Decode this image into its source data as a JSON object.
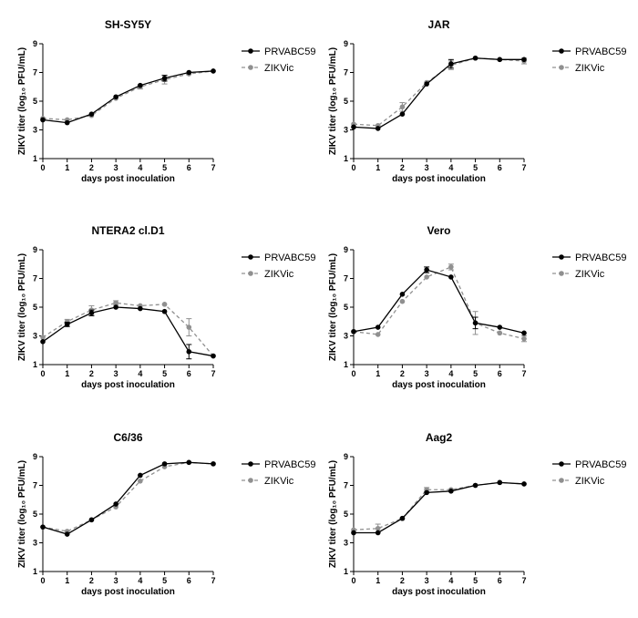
{
  "chart_data": [
    {
      "type": "line",
      "title": "SH-SY5Y",
      "xlabel": "days post inoculation",
      "ylabel": "ZIKV titer (log₁₀ PFU/mL)",
      "x": [
        0,
        1,
        2,
        3,
        4,
        5,
        6,
        7
      ],
      "xlim": [
        0,
        7
      ],
      "ylim": [
        1,
        9
      ],
      "xticks": [
        0,
        1,
        2,
        3,
        4,
        5,
        6,
        7
      ],
      "yticks": [
        1,
        3,
        5,
        7,
        9
      ],
      "series": [
        {
          "name": "PRVABC59",
          "color": "#000000",
          "dashed": false,
          "values": [
            3.7,
            3.5,
            4.1,
            5.3,
            6.1,
            6.6,
            7.0,
            7.1
          ],
          "errors": [
            0.1,
            0.1,
            0.1,
            0.1,
            0.1,
            0.2,
            0.1,
            0.05
          ]
        },
        {
          "name": "ZIKVic",
          "color": "#909090",
          "dashed": true,
          "values": [
            3.8,
            3.7,
            4.0,
            5.2,
            6.0,
            6.5,
            6.9,
            7.1
          ],
          "errors": [
            0.1,
            0.1,
            0.1,
            0.1,
            0.15,
            0.3,
            0.1,
            0.05
          ]
        }
      ]
    },
    {
      "type": "line",
      "title": "JAR",
      "xlabel": "days post inoculation",
      "ylabel": "ZIKV titer (log₁₀ PFU/mL)",
      "x": [
        0,
        1,
        2,
        3,
        4,
        5,
        6,
        7
      ],
      "xlim": [
        0,
        7
      ],
      "ylim": [
        1,
        9
      ],
      "xticks": [
        0,
        1,
        2,
        3,
        4,
        5,
        6,
        7
      ],
      "yticks": [
        1,
        3,
        5,
        7,
        9
      ],
      "series": [
        {
          "name": "PRVABC59",
          "color": "#000000",
          "dashed": false,
          "values": [
            3.2,
            3.1,
            4.1,
            6.2,
            7.6,
            8.0,
            7.9,
            7.9
          ],
          "errors": [
            0.1,
            0.1,
            0.1,
            0.1,
            0.3,
            0.05,
            0.05,
            0.1
          ]
        },
        {
          "name": "ZIKVic",
          "color": "#909090",
          "dashed": true,
          "values": [
            3.4,
            3.3,
            4.6,
            6.3,
            7.5,
            8.0,
            7.9,
            7.8
          ],
          "errors": [
            0.1,
            0.1,
            0.3,
            0.1,
            0.3,
            0.05,
            0.05,
            0.2
          ]
        }
      ]
    },
    {
      "type": "line",
      "title": "NTERA2 cl.D1",
      "xlabel": "days post inoculation",
      "ylabel": "ZIKV titer (log₁₀ PFU/mL)",
      "x": [
        0,
        1,
        2,
        3,
        4,
        5,
        6,
        7
      ],
      "xlim": [
        0,
        7
      ],
      "ylim": [
        1,
        9
      ],
      "xticks": [
        0,
        1,
        2,
        3,
        4,
        5,
        6,
        7
      ],
      "yticks": [
        1,
        3,
        5,
        7,
        9
      ],
      "series": [
        {
          "name": "PRVABC59",
          "color": "#000000",
          "dashed": false,
          "values": [
            2.6,
            3.8,
            4.6,
            5.0,
            4.9,
            4.7,
            1.9,
            1.6
          ],
          "errors": [
            0.1,
            0.15,
            0.2,
            0.1,
            0.1,
            0.1,
            0.5,
            0.1
          ]
        },
        {
          "name": "ZIKVic",
          "color": "#909090",
          "dashed": true,
          "values": [
            2.9,
            4.0,
            4.8,
            5.3,
            5.1,
            5.2,
            3.6,
            1.6
          ],
          "errors": [
            0.1,
            0.15,
            0.3,
            0.15,
            0.1,
            0.1,
            0.6,
            0.1
          ]
        }
      ]
    },
    {
      "type": "line",
      "title": "Vero",
      "xlabel": "days post inoculation",
      "ylabel": "ZIKV titer (log₁₀ PFU/mL)",
      "x": [
        0,
        1,
        2,
        3,
        4,
        5,
        6,
        7
      ],
      "xlim": [
        0,
        7
      ],
      "ylim": [
        1,
        9
      ],
      "xticks": [
        0,
        1,
        2,
        3,
        4,
        5,
        6,
        7
      ],
      "yticks": [
        1,
        3,
        5,
        7,
        9
      ],
      "series": [
        {
          "name": "PRVABC59",
          "color": "#000000",
          "dashed": false,
          "values": [
            3.3,
            3.6,
            5.9,
            7.6,
            7.1,
            3.9,
            3.6,
            3.2
          ],
          "errors": [
            0.1,
            0.1,
            0.1,
            0.2,
            0.1,
            0.4,
            0.1,
            0.1
          ]
        },
        {
          "name": "ZIKVic",
          "color": "#909090",
          "dashed": true,
          "values": [
            3.3,
            3.1,
            5.4,
            7.1,
            7.8,
            3.9,
            3.2,
            2.8
          ],
          "errors": [
            0.1,
            0.1,
            0.1,
            0.1,
            0.2,
            0.8,
            0.1,
            0.2
          ]
        }
      ]
    },
    {
      "type": "line",
      "title": "C6/36",
      "xlabel": "days post inoculation",
      "ylabel": "ZIKV titer (log₁₀ PFU/mL)",
      "x": [
        0,
        1,
        2,
        3,
        4,
        5,
        6,
        7
      ],
      "xlim": [
        0,
        7
      ],
      "ylim": [
        1,
        9
      ],
      "xticks": [
        0,
        1,
        2,
        3,
        4,
        5,
        6,
        7
      ],
      "yticks": [
        1,
        3,
        5,
        7,
        9
      ],
      "series": [
        {
          "name": "PRVABC59",
          "color": "#000000",
          "dashed": false,
          "values": [
            4.1,
            3.6,
            4.6,
            5.7,
            7.7,
            8.5,
            8.6,
            8.5
          ],
          "errors": [
            0.1,
            0.1,
            0.1,
            0.1,
            0.1,
            0.1,
            0.1,
            0.1
          ]
        },
        {
          "name": "ZIKVic",
          "color": "#909090",
          "dashed": true,
          "values": [
            4.1,
            3.8,
            4.6,
            5.5,
            7.3,
            8.3,
            8.6,
            8.5
          ],
          "errors": [
            0.1,
            0.1,
            0.1,
            0.1,
            0.1,
            0.1,
            0.1,
            0.1
          ]
        }
      ]
    },
    {
      "type": "line",
      "title": "Aag2",
      "xlabel": "days post inoculation",
      "ylabel": "ZIKV titer (log₁₀ PFU/mL)",
      "x": [
        0,
        1,
        2,
        3,
        4,
        5,
        6,
        7
      ],
      "xlim": [
        0,
        7
      ],
      "ylim": [
        1,
        9
      ],
      "xticks": [
        0,
        1,
        2,
        3,
        4,
        5,
        6,
        7
      ],
      "yticks": [
        1,
        3,
        5,
        7,
        9
      ],
      "series": [
        {
          "name": "PRVABC59",
          "color": "#000000",
          "dashed": false,
          "values": [
            3.7,
            3.7,
            4.7,
            6.5,
            6.6,
            7.0,
            7.2,
            7.1
          ],
          "errors": [
            0.1,
            0.1,
            0.1,
            0.1,
            0.1,
            0.1,
            0.1,
            0.1
          ]
        },
        {
          "name": "ZIKVic",
          "color": "#909090",
          "dashed": true,
          "values": [
            3.9,
            4.0,
            4.7,
            6.7,
            6.7,
            7.0,
            7.2,
            7.1
          ],
          "errors": [
            0.1,
            0.3,
            0.1,
            0.15,
            0.1,
            0.1,
            0.1,
            0.1
          ]
        }
      ]
    }
  ]
}
